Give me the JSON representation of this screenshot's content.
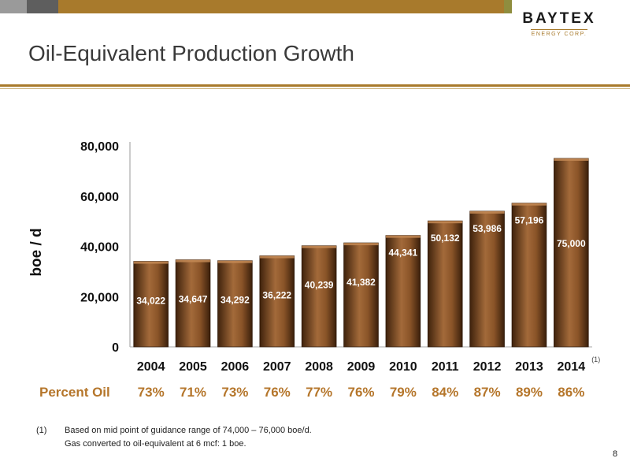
{
  "slide": {
    "title": "Oil-Equivalent Production Growth",
    "page_number": "8",
    "colors": {
      "bar": "#7a4a22",
      "bar_highlight": "#c48a55",
      "accent": "#a87a2c",
      "percent_text": "#b5762b"
    }
  },
  "logo": {
    "word": "BAYTEX",
    "subtitle": "ENERGY CORP."
  },
  "chart_data": {
    "type": "bar",
    "categories": [
      "2004",
      "2005",
      "2006",
      "2007",
      "2008",
      "2009",
      "2010",
      "2011",
      "2012",
      "2013",
      "2014"
    ],
    "values": [
      34022,
      34647,
      34292,
      36222,
      40239,
      41382,
      44341,
      50132,
      53986,
      57196,
      75000
    ],
    "data_labels": [
      "34,022",
      "34,647",
      "34,292",
      "36,222",
      "40,239",
      "41,382",
      "44,341",
      "50,132",
      "53,986",
      "57,196",
      "75,000"
    ],
    "ylabel": "boe / d",
    "ylim": [
      0,
      80000
    ],
    "yticks": [
      0,
      20000,
      40000,
      60000,
      80000
    ],
    "ytick_labels": [
      "0",
      "20,000",
      "40,000",
      "60,000",
      "80,000"
    ],
    "annotation": {
      "category": "2014",
      "text": "(1)"
    },
    "grid": false
  },
  "percent_oil": {
    "label": "Percent Oil",
    "values": [
      "73%",
      "71%",
      "73%",
      "76%",
      "77%",
      "76%",
      "79%",
      "84%",
      "87%",
      "89%",
      "86%"
    ]
  },
  "footnotes": [
    {
      "marker": "(1)",
      "text": "Based on mid point of guidance range of 74,000 – 76,000 boe/d."
    },
    {
      "marker": "",
      "text": "Gas converted to oil-equivalent at 6 mcf: 1 boe."
    }
  ]
}
